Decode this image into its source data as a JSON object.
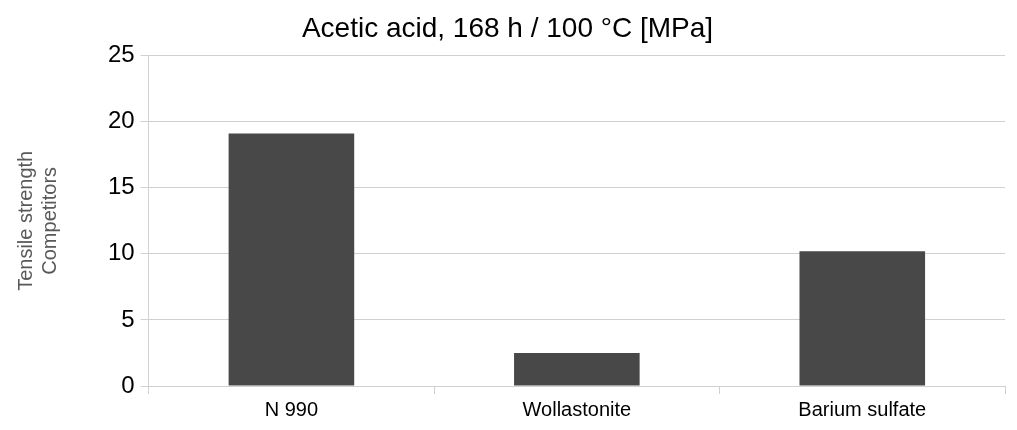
{
  "chart_data": {
    "type": "bar",
    "title": "Acetic acid, 168 h / 100 °C [MPa]",
    "ylabel": "Tensile strength\nCompetitors",
    "categories": [
      "N 990",
      "Wollastonite",
      "Barium sulfate"
    ],
    "values": [
      19.1,
      2.5,
      10.2
    ],
    "color": "#484848",
    "ylim": [
      0,
      25
    ],
    "yticks": [
      0,
      5,
      10,
      15,
      20,
      25
    ],
    "grid": "y",
    "legend": false
  }
}
